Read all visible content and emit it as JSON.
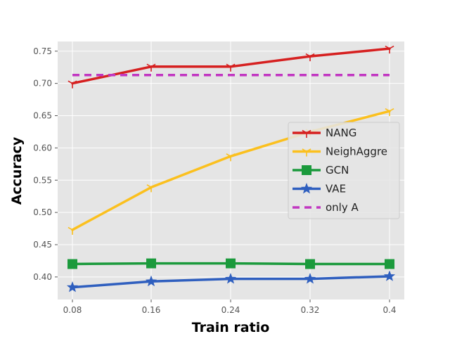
{
  "chart_data": {
    "type": "line",
    "title": "",
    "xlabel": "Train ratio",
    "ylabel": "Accuracy",
    "x": [
      0.08,
      0.16,
      0.24,
      0.32,
      0.4
    ],
    "x_tick_labels": [
      "0.08",
      "0.16",
      "0.24",
      "0.32",
      "0.4"
    ],
    "ylim": [
      0.365,
      0.765
    ],
    "y_ticks": [
      0.4,
      0.45,
      0.5,
      0.55,
      0.6,
      0.65,
      0.7,
      0.75
    ],
    "y_tick_labels": [
      "0.40",
      "0.45",
      "0.50",
      "0.55",
      "0.60",
      "0.65",
      "0.70",
      "0.75"
    ],
    "grid": true,
    "legend_position": "center-right",
    "series": [
      {
        "name": "NANG",
        "values": [
          0.7,
          0.726,
          0.726,
          0.742,
          0.754
        ],
        "color": "#d62020",
        "marker": "tri",
        "style": "solid"
      },
      {
        "name": "NeighAggre",
        "values": [
          0.473,
          0.539,
          0.587,
          0.625,
          0.657
        ],
        "color": "#fbc01e",
        "marker": "tri",
        "style": "solid"
      },
      {
        "name": "GCN",
        "values": [
          0.42,
          0.421,
          0.421,
          0.42,
          0.42
        ],
        "color": "#1b9a3c",
        "marker": "square",
        "style": "solid"
      },
      {
        "name": "VAE",
        "values": [
          0.384,
          0.393,
          0.397,
          0.397,
          0.401
        ],
        "color": "#2f5fbf",
        "marker": "star",
        "style": "solid"
      },
      {
        "name": "only A",
        "values": [
          0.713,
          0.713,
          0.713,
          0.713,
          0.713
        ],
        "color": "#c136c1",
        "marker": "none",
        "style": "dashed"
      }
    ]
  }
}
